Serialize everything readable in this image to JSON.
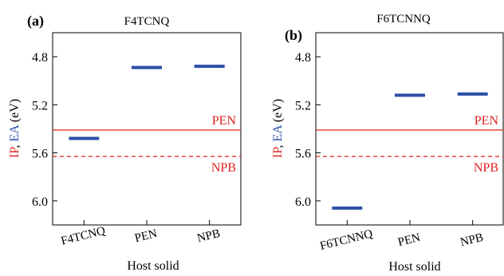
{
  "colors": {
    "ip": "#e0201f",
    "ea": "#2c4fa8",
    "axis": "#000000"
  },
  "chart_data": [
    {
      "panel_label": "(a)",
      "type": "scatter",
      "title": "F4TCNQ",
      "xlabel": "Host solid",
      "ylabel_parts": [
        {
          "text": "IP",
          "color_key": "ip"
        },
        {
          "text": ", ",
          "color_key": "axis"
        },
        {
          "text": "EA",
          "color_key": "ea"
        },
        {
          "text": " (eV)",
          "color_key": "axis"
        }
      ],
      "y_inverted": true,
      "ylim": [
        4.6,
        6.2
      ],
      "yticks": [
        "4.8",
        "5.2",
        "5.6",
        "6.0"
      ],
      "categories": [
        "F4TCNQ",
        "PEN",
        "NPB"
      ],
      "ea_values": [
        5.48,
        4.89,
        4.88
      ],
      "ip_lines": [
        {
          "label": "PEN",
          "value": 5.41,
          "style": "solid"
        },
        {
          "label": "NPB",
          "value": 5.63,
          "style": "dashed"
        }
      ]
    },
    {
      "panel_label": "(b)",
      "type": "scatter",
      "title": "F6TCNNQ",
      "xlabel": "Host solid",
      "ylabel_parts": [
        {
          "text": "IP",
          "color_key": "ip"
        },
        {
          "text": ", ",
          "color_key": "axis"
        },
        {
          "text": "EA",
          "color_key": "ea"
        },
        {
          "text": " (eV)",
          "color_key": "axis"
        }
      ],
      "y_inverted": true,
      "ylim": [
        4.6,
        6.2
      ],
      "yticks": [
        "4.8",
        "5.2",
        "5.6",
        "6.0"
      ],
      "categories": [
        "F6TCNNQ",
        "PEN",
        "NPB"
      ],
      "ea_values": [
        6.06,
        5.12,
        5.11
      ],
      "ip_lines": [
        {
          "label": "PEN",
          "value": 5.41,
          "style": "solid"
        },
        {
          "label": "NPB",
          "value": 5.63,
          "style": "dashed"
        }
      ]
    }
  ]
}
